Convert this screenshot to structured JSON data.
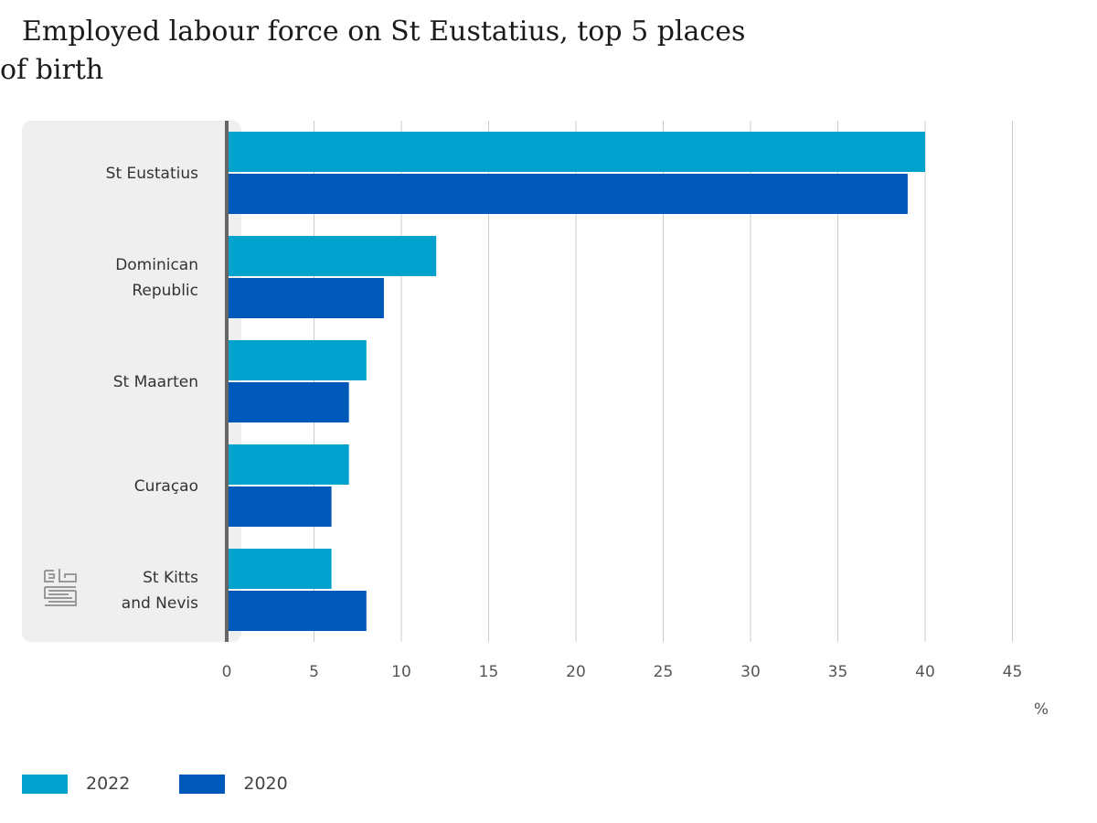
{
  "chart_data": {
    "type": "bar",
    "orientation": "horizontal",
    "title": "Employed labour force on St Eustatius, top 5 places of birth",
    "categories": [
      "St Eustatius",
      "Dominican Republic",
      "St Maarten",
      "Curaçao",
      "St Kitts and Nevis"
    ],
    "category_lines": [
      [
        "St Eustatius"
      ],
      [
        "Dominican",
        "Republic"
      ],
      [
        "St Maarten"
      ],
      [
        "Curaçao"
      ],
      [
        "St Kitts",
        "and Nevis"
      ]
    ],
    "series": [
      {
        "name": "2022",
        "color": "#00a1cd",
        "values": [
          40,
          12,
          8,
          7,
          6
        ]
      },
      {
        "name": "2020",
        "color": "#0058b8",
        "values": [
          39,
          9,
          7,
          6,
          8
        ]
      }
    ],
    "x_ticks": [
      0,
      5,
      10,
      15,
      20,
      25,
      30,
      35,
      40,
      45
    ],
    "xlim": [
      0,
      45
    ],
    "unit": "%",
    "grid": true,
    "legend_position": "bottom-left",
    "colors": {
      "panel": "#efefef",
      "axis": "#666666",
      "grid": "#cccccc",
      "logo": "#999999"
    }
  }
}
